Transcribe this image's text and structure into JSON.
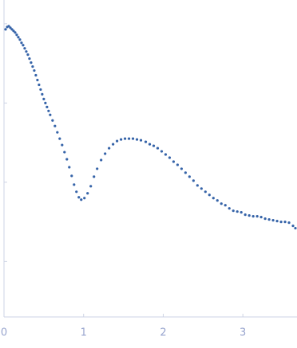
{
  "chart_data": {
    "type": "scatter",
    "color": "#3563a8",
    "x": [
      0.02,
      0.04,
      0.06,
      0.08,
      0.1,
      0.12,
      0.14,
      0.16,
      0.18,
      0.2,
      0.22,
      0.24,
      0.26,
      0.28,
      0.3,
      0.32,
      0.34,
      0.36,
      0.38,
      0.4,
      0.42,
      0.44,
      0.46,
      0.48,
      0.5,
      0.52,
      0.54,
      0.56,
      0.58,
      0.61,
      0.64,
      0.67,
      0.7,
      0.73,
      0.76,
      0.79,
      0.82,
      0.85,
      0.88,
      0.91,
      0.94,
      0.97,
      1.01,
      1.05,
      1.09,
      1.13,
      1.17,
      1.22,
      1.27,
      1.32,
      1.37,
      1.42,
      1.47,
      1.52,
      1.57,
      1.62,
      1.67,
      1.72,
      1.78,
      1.83,
      1.88,
      1.93,
      1.98,
      2.03,
      2.08,
      2.13,
      2.18,
      2.23,
      2.28,
      2.33,
      2.38,
      2.43,
      2.48,
      2.53,
      2.58,
      2.63,
      2.68,
      2.73,
      2.78,
      2.83,
      2.88,
      2.93,
      2.98,
      3.03,
      3.08,
      3.13,
      3.18,
      3.23,
      3.28,
      3.33,
      3.38,
      3.43,
      3.48,
      3.53,
      3.58,
      3.63,
      3.66
    ],
    "values": [
      2.93,
      2.96,
      2.97,
      2.95,
      2.93,
      2.91,
      2.89,
      2.86,
      2.83,
      2.8,
      2.76,
      2.73,
      2.69,
      2.65,
      2.61,
      2.56,
      2.51,
      2.46,
      2.41,
      2.35,
      2.29,
      2.23,
      2.17,
      2.11,
      2.05,
      2.0,
      1.95,
      1.9,
      1.85,
      1.78,
      1.71,
      1.63,
      1.55,
      1.47,
      1.38,
      1.29,
      1.19,
      1.08,
      0.97,
      0.88,
      0.81,
      0.78,
      0.8,
      0.86,
      0.95,
      1.07,
      1.17,
      1.28,
      1.36,
      1.43,
      1.48,
      1.52,
      1.54,
      1.55,
      1.55,
      1.55,
      1.54,
      1.53,
      1.51,
      1.48,
      1.46,
      1.43,
      1.39,
      1.35,
      1.31,
      1.26,
      1.22,
      1.17,
      1.12,
      1.07,
      1.02,
      0.96,
      0.92,
      0.88,
      0.84,
      0.8,
      0.77,
      0.73,
      0.71,
      0.67,
      0.64,
      0.63,
      0.62,
      0.59,
      0.58,
      0.57,
      0.57,
      0.56,
      0.54,
      0.53,
      0.52,
      0.51,
      0.5,
      0.5,
      0.49,
      0.45,
      0.42
    ],
    "xlim": [
      0,
      3.68
    ],
    "xticks": [
      0,
      1,
      2,
      3
    ],
    "ylim": [
      -0.7,
      3.3
    ],
    "yticks": [
      0,
      1,
      2,
      3
    ]
  }
}
